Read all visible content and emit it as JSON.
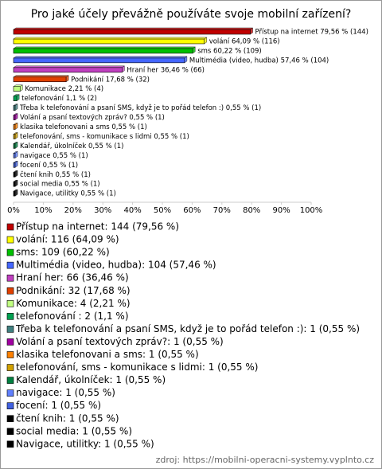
{
  "chart_data": {
    "type": "bar",
    "orientation": "horizontal",
    "title": "Pro jaké účely převážně používáte svoje mobilní zařízení?",
    "categories": [
      "Přístup na internet",
      "volání",
      "sms",
      "Multimédia (video, hudba)",
      "Hraní her",
      "Podnikání",
      "Komunikace",
      "telefonování",
      "Třeba k telefonování a psaní SMS, když je to pořád telefon :)",
      "Volání a psaní textových zpráv?",
      "klasika telefonovani a sms",
      "telefonování, sms - komunikace s lidmi",
      "Kalendář, úkolníček",
      "navigace",
      "focení",
      "čtení knih",
      "social media",
      "Navigace, utilitky"
    ],
    "values": [
      79.56,
      64.09,
      60.22,
      57.46,
      36.46,
      17.68,
      2.21,
      1.1,
      0.55,
      0.55,
      0.55,
      0.55,
      0.55,
      0.55,
      0.55,
      0.55,
      0.55,
      0.55
    ],
    "value_labels": [
      "Přístup na internet 79,56 % (144)",
      "volání 64,09 % (116)",
      "sms 60,22 % (109)",
      "Multimédia (video, hudba) 57,46 % (104)",
      "Hraní her 36,46 % (66)",
      "Podnikání 17,68 % (32)",
      "Komunikace 2,21 % (4)",
      "telefonování 1,1 % (2)",
      "Třeba k telefonování a psaní SMS, když je to pořád telefon :) 0,55 % (1)",
      "Volání a psaní textových zpráv? 0,55 % (1)",
      "klasika telefonovani a sms 0,55 % (1)",
      "telefonování, sms - komunikace s lidmi 0,55 % (1)",
      "Kalendář, úkolníček 0,55 % (1)",
      "navigace 0,55 % (1)",
      "focení 0,55 % (1)",
      "čtení knih 0,55 % (1)",
      "social media 0,55 % (1)",
      "Navigace, utilitky 0,55 % (1)"
    ],
    "legend_labels": [
      "Přístup na internet: 144 (79,56 %)",
      "volání: 116 (64,09 %)",
      "sms: 109 (60,22 %)",
      "Multimédia (video, hudba): 104 (57,46 %)",
      "Hraní her: 66 (36,46 %)",
      "Podnikání: 32 (17,68 %)",
      "Komunikace: 4 (2,21 %)",
      "telefonování : 2 (1,1 %)",
      "Třeba k telefonování a psaní SMS, když je to pořád telefon :): 1 (0,55 %)",
      "Volání a psaní textových zpráv?: 1 (0,55 %)",
      "klasika telefonovani a sms: 1 (0,55 %)",
      "telefonování, sms - komunikace s lidmi: 1 (0,55 %)",
      "Kalendář, úkolníček: 1 (0,55 %)",
      "navigace: 1 (0,55 %)",
      "focení: 1 (0,55 %)",
      "čtení knih: 1 (0,55 %)",
      "social media: 1 (0,55 %)",
      "Navigace, utilitky: 1 (0,55 %)"
    ],
    "colors": [
      "#c00000",
      "#ffff00",
      "#00c000",
      "#4466ff",
      "#c040c0",
      "#e04000",
      "#c0ff80",
      "#00a050",
      "#408080",
      "#a000a0",
      "#ff8000",
      "#d0a000",
      "#008040",
      "#6080ff",
      "#4060e0",
      "#000000",
      "#000000",
      "#000000"
    ],
    "xlim": [
      0,
      100
    ],
    "xticks": [
      {
        "value": 0,
        "label": "0%"
      },
      {
        "value": 10,
        "label": "10%"
      },
      {
        "value": 20,
        "label": "20%"
      },
      {
        "value": 30,
        "label": "30%"
      },
      {
        "value": 40,
        "label": "40%"
      },
      {
        "value": 50,
        "label": "50%"
      },
      {
        "value": 60,
        "label": "60%"
      },
      {
        "value": 70,
        "label": "70%"
      },
      {
        "value": 80,
        "label": "80%"
      },
      {
        "value": 90,
        "label": "90%"
      },
      {
        "value": 100,
        "label": "100%"
      }
    ],
    "source": "zdroj: https://mobilni-operacni-systemy.vyplnto.cz"
  }
}
